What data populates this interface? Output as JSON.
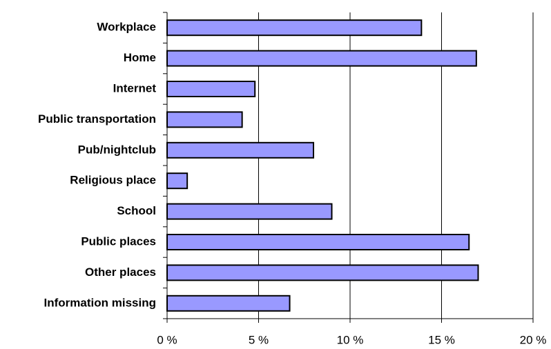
{
  "chart_data": {
    "type": "hbar",
    "categories": [
      "Workplace",
      "Home",
      "Internet",
      "Public transportation",
      "Pub/nightclub",
      "Religious place",
      "School",
      "Public places",
      "Other places",
      "Information missing"
    ],
    "values": [
      13.9,
      16.9,
      4.8,
      4.1,
      8.0,
      1.1,
      9.0,
      16.5,
      17.0,
      6.7
    ],
    "color": "#9999ff",
    "xlim": [
      0,
      20
    ],
    "xticks": [
      {
        "value": 0,
        "label": "0 %"
      },
      {
        "value": 5,
        "label": "5 %"
      },
      {
        "value": 10,
        "label": "10 %"
      },
      {
        "value": 15,
        "label": "15 %"
      },
      {
        "value": 20,
        "label": "20 %"
      }
    ],
    "grid": true
  }
}
